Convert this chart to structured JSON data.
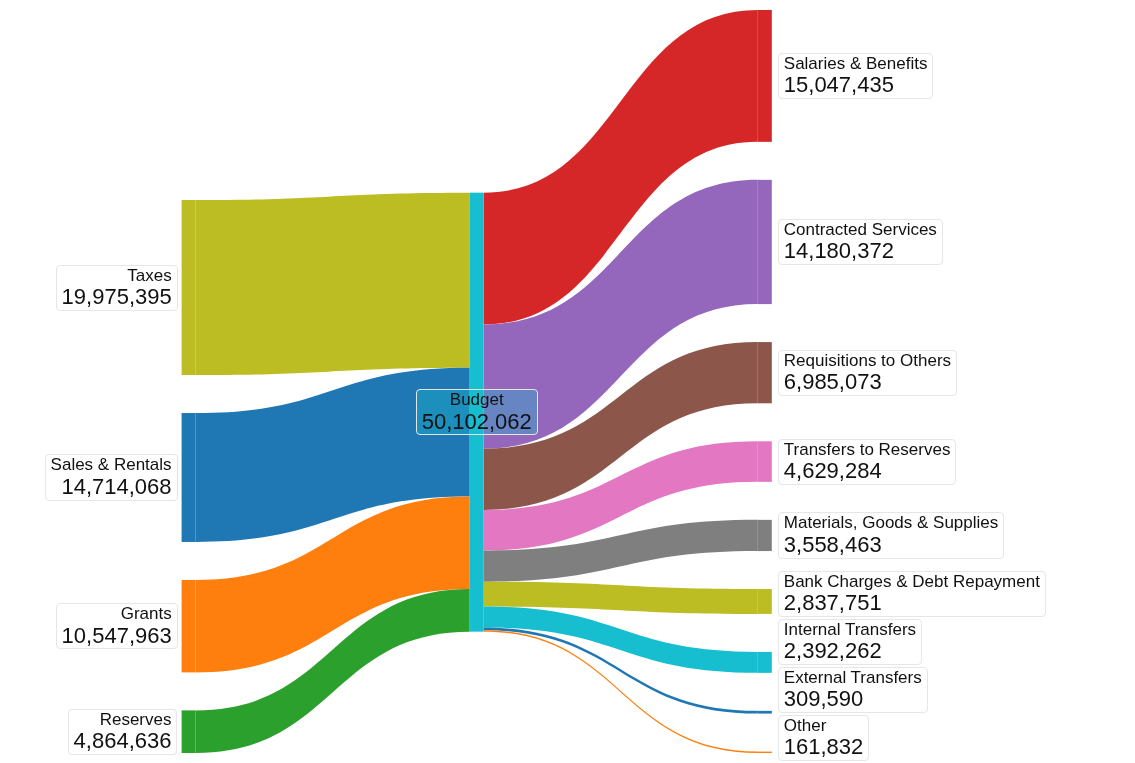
{
  "chart_data": {
    "type": "other",
    "categories": [
      "Taxes",
      "Sales & Rentals",
      "Grants",
      "Reserves",
      "Budget",
      "Salaries & Benefits",
      "Contracted Services",
      "Requisitions to Others",
      "Transfers to Reserves",
      "Materials, Goods & Supplies",
      "Bank Charges & Debt Repayment",
      "Internal Transfers",
      "External Transfers",
      "Other"
    ],
    "values": [
      19975395,
      14714068,
      10547963,
      4864636,
      50102062,
      15047435,
      14180372,
      6985073,
      4629284,
      3558463,
      2837751,
      2392262,
      309590,
      161832
    ],
    "value_labels": [
      "19,975,395",
      "14,714,068",
      "10,547,963",
      "4,864,636",
      "50,102,062",
      "15,047,435",
      "14,180,372",
      "6,985,073",
      "4,629,284",
      "3,558,463",
      "2,837,751",
      "2,392,262",
      "309,590",
      "161,832"
    ],
    "colors": [
      "#bcbd22",
      "#1f77b4",
      "#ff7f0e",
      "#2ca02c",
      "#17becf",
      "#d62728",
      "#9467bd",
      "#8c564b",
      "#e377c2",
      "#7f7f7f",
      "#bcbd22",
      "#17becf",
      "#1f77b4",
      "#ff7f0e"
    ]
  }
}
